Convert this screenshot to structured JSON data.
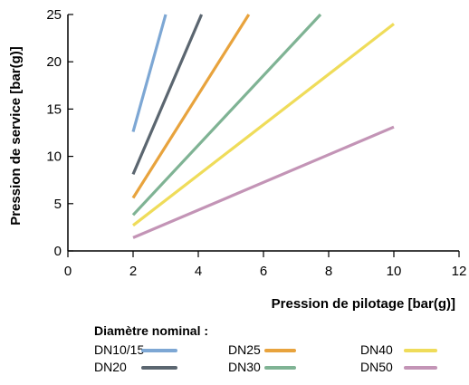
{
  "chart_data": {
    "type": "line",
    "xlabel": "Pression de pilotage [bar(g)]",
    "ylabel": "Pression de service [bar(g)]",
    "xlim": [
      0,
      12
    ],
    "ylim": [
      0,
      25
    ],
    "xticks": [
      "0",
      "2",
      "4",
      "6",
      "8",
      "10",
      "12"
    ],
    "yticks": [
      "0",
      "5",
      "10",
      "15",
      "20",
      "25"
    ],
    "grid": false,
    "legend_title": "Diamètre nominal :",
    "legend_placement": "bottom",
    "series": [
      {
        "name": "DN10/15",
        "color": "#7da7d4",
        "x": [
          2,
          3
        ],
        "y": [
          12.6,
          25
        ]
      },
      {
        "name": "DN20",
        "color": "#5b6670",
        "x": [
          2,
          4.1
        ],
        "y": [
          8.1,
          25
        ]
      },
      {
        "name": "DN25",
        "color": "#e8a33d",
        "x": [
          2,
          5.55
        ],
        "y": [
          5.6,
          25
        ]
      },
      {
        "name": "DN30",
        "color": "#7fb394",
        "x": [
          2,
          7.75
        ],
        "y": [
          3.8,
          25
        ]
      },
      {
        "name": "DN40",
        "color": "#efdc5a",
        "x": [
          2,
          10
        ],
        "y": [
          2.7,
          24
        ]
      },
      {
        "name": "DN50",
        "color": "#c394b6",
        "x": [
          2,
          10
        ],
        "y": [
          1.4,
          13.1
        ]
      }
    ]
  }
}
